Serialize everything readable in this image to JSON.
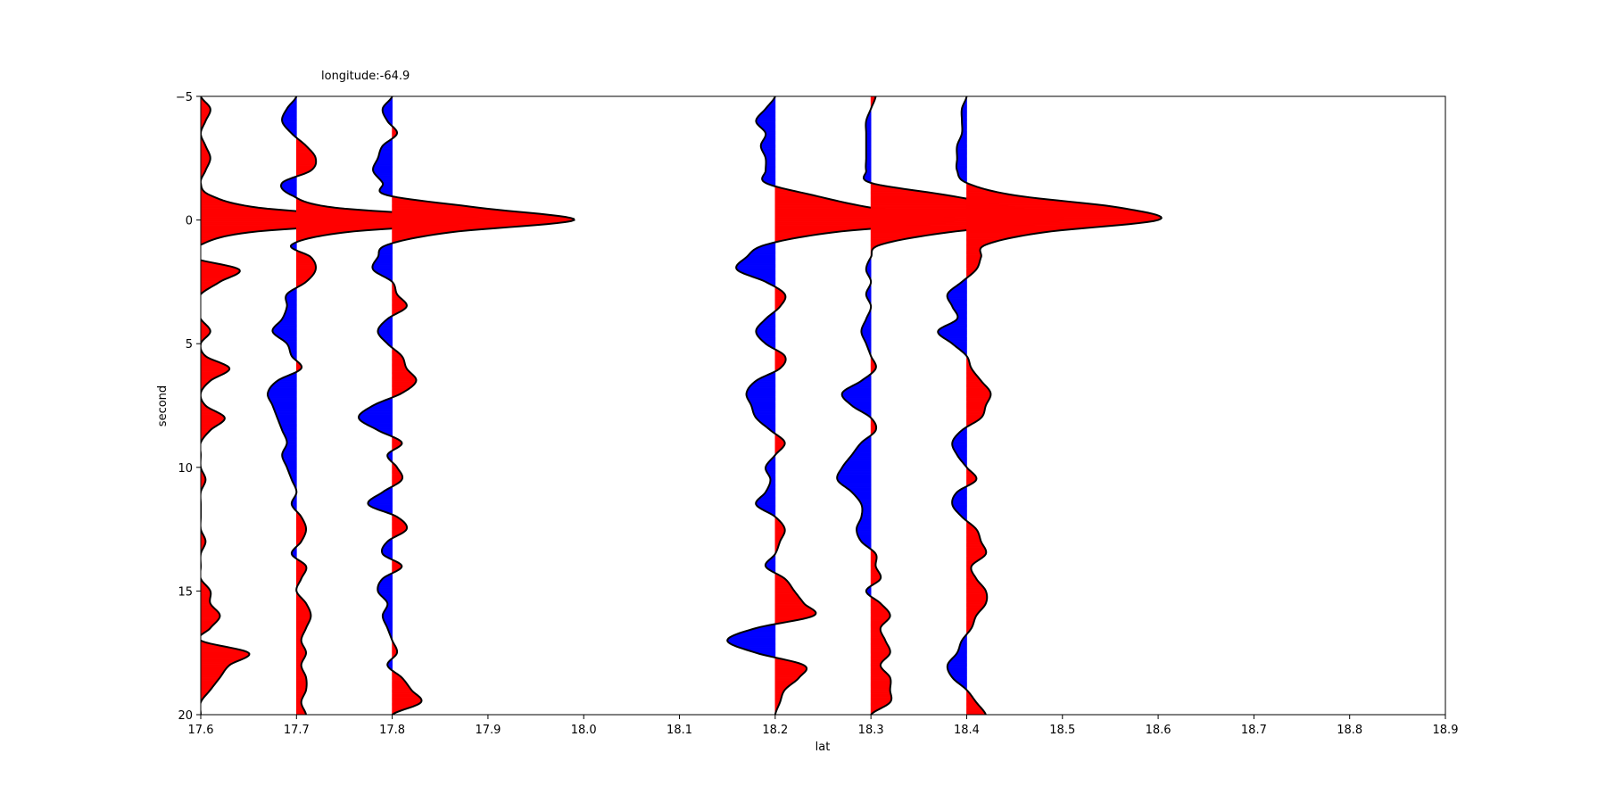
{
  "chart_data": {
    "type": "area",
    "title": "longitude:-64.9",
    "xlabel": "lat",
    "ylabel": "second",
    "xlim": [
      17.6,
      18.9
    ],
    "ylim": [
      -5,
      20
    ],
    "y_inverted": true,
    "xticks": [
      "17.6",
      "17.7",
      "17.8",
      "17.9",
      "18.0",
      "18.1",
      "18.2",
      "18.3",
      "18.4",
      "18.5",
      "18.6",
      "18.7",
      "18.8",
      "18.9"
    ],
    "yticks": [
      "−5",
      "0",
      "5",
      "10",
      "15",
      "20"
    ],
    "grid": false,
    "colors": {
      "positive": "#ff0000",
      "negative": "#0000ff",
      "line": "#000000"
    },
    "t": [
      -5,
      -4.5,
      -4,
      -3.5,
      -3,
      -2.5,
      -2,
      -1.5,
      -1,
      -0.5,
      0,
      0.5,
      1,
      1.5,
      2,
      2.5,
      3,
      3.5,
      4,
      4.5,
      5,
      5.5,
      6,
      6.5,
      7,
      7.5,
      8,
      8.5,
      9,
      9.5,
      10,
      10.5,
      11,
      11.5,
      12,
      12.5,
      13,
      13.5,
      14,
      14.5,
      15,
      15.5,
      16,
      16.5,
      17,
      17.5,
      18,
      18.5,
      19,
      19.5,
      20
    ],
    "series": [
      {
        "x0": 17.6,
        "values": [
          0,
          0.01,
          0.005,
          0,
          0.005,
          0.01,
          0.005,
          0,
          0.01,
          0.06,
          0.2,
          0.05,
          0,
          -0.01,
          0.04,
          0.02,
          0,
          -0.005,
          0,
          0.01,
          0,
          0.005,
          0.03,
          0.01,
          0,
          0.005,
          0.025,
          0.01,
          0,
          0,
          0,
          0.005,
          0,
          0,
          0,
          0,
          0.005,
          0,
          0,
          0,
          0.01,
          0.01,
          0.02,
          0.01,
          0,
          0.05,
          0.03,
          0.02,
          0.01,
          0,
          0
        ]
      },
      {
        "x0": 17.7,
        "values": [
          0,
          -0.01,
          -0.015,
          -0.005,
          0.01,
          0.02,
          0.015,
          -0.015,
          -0.005,
          0.04,
          0.2,
          0.05,
          -0.005,
          0.015,
          0.02,
          0.01,
          -0.01,
          -0.01,
          -0.015,
          -0.025,
          -0.01,
          -0.005,
          0.005,
          -0.02,
          -0.03,
          -0.025,
          -0.02,
          -0.015,
          -0.01,
          -0.015,
          -0.01,
          -0.005,
          0,
          -0.005,
          0.005,
          0.01,
          0.005,
          -0.005,
          0.01,
          0.005,
          0,
          0.01,
          0.015,
          0.01,
          0.005,
          0.01,
          0.005,
          0.01,
          0.01,
          0.005,
          0.01
        ]
      },
      {
        "x0": 17.8,
        "values": [
          0,
          -0.01,
          -0.005,
          0.005,
          -0.01,
          -0.015,
          -0.02,
          -0.01,
          -0.005,
          0.09,
          0.19,
          0.06,
          -0.005,
          -0.015,
          -0.02,
          0,
          0.005,
          0.015,
          -0.005,
          -0.015,
          -0.005,
          0.01,
          0.015,
          0.025,
          0.01,
          -0.02,
          -0.035,
          -0.015,
          0.01,
          -0.005,
          0.005,
          0.01,
          -0.01,
          -0.025,
          0.005,
          0.015,
          -0.005,
          -0.01,
          0.01,
          -0.01,
          -0.015,
          -0.005,
          -0.01,
          -0.005,
          0,
          0.005,
          -0.005,
          0.01,
          0.02,
          0.03,
          0
        ]
      },
      {
        "x0": 18.2,
        "values": [
          0,
          -0.01,
          -0.02,
          -0.01,
          -0.015,
          -0.01,
          -0.01,
          -0.01,
          0.04,
          0.1,
          0.19,
          0.06,
          -0.01,
          -0.03,
          -0.04,
          -0.01,
          0.01,
          0.005,
          -0.01,
          -0.02,
          -0.01,
          0.01,
          0.005,
          -0.02,
          -0.03,
          -0.025,
          -0.02,
          -0.005,
          0.01,
          0,
          -0.01,
          -0.005,
          -0.01,
          -0.02,
          0,
          0.01,
          0.005,
          0,
          -0.01,
          0.01,
          0.02,
          0.03,
          0.04,
          -0.02,
          -0.05,
          -0.02,
          0.03,
          0.025,
          0.01,
          0.005,
          0
        ]
      },
      {
        "x0": 18.3,
        "values": [
          0.005,
          0,
          -0.005,
          -0.005,
          -0.005,
          -0.005,
          -0.005,
          0,
          0.08,
          0.15,
          0.2,
          0.08,
          0.01,
          0,
          -0.005,
          0,
          -0.005,
          0,
          -0.005,
          -0.01,
          -0.005,
          0,
          0.005,
          -0.01,
          -0.03,
          -0.02,
          0,
          0.005,
          -0.01,
          -0.02,
          -0.03,
          -0.035,
          -0.02,
          -0.01,
          -0.01,
          -0.015,
          -0.01,
          0.005,
          0.005,
          0.01,
          -0.005,
          0.01,
          0.02,
          0.01,
          0.015,
          0.02,
          0.01,
          0.02,
          0.02,
          0.02,
          0
        ]
      },
      {
        "x0": 18.4,
        "values": [
          0,
          -0.005,
          -0.005,
          -0.005,
          -0.01,
          -0.01,
          -0.01,
          0,
          0.05,
          0.16,
          0.2,
          0.08,
          0.02,
          0.015,
          0.01,
          -0.005,
          -0.02,
          -0.015,
          -0.01,
          -0.03,
          -0.015,
          0,
          0.005,
          0.015,
          0.025,
          0.02,
          0.015,
          -0.005,
          -0.015,
          -0.01,
          0,
          0.01,
          -0.01,
          -0.015,
          -0.005,
          0.01,
          0.015,
          0.02,
          0.005,
          0.01,
          0.02,
          0.02,
          0.01,
          0.005,
          -0.005,
          -0.01,
          -0.02,
          -0.015,
          0,
          0.01,
          0.02
        ]
      }
    ]
  }
}
